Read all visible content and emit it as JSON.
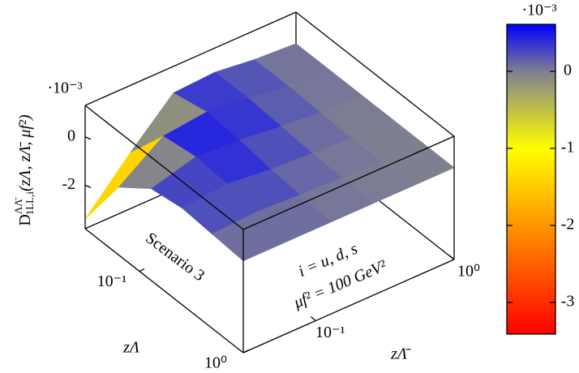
{
  "chart_data": {
    "type": "surface",
    "zlabel": {
      "base": "D",
      "sup": "ΛΛ̄",
      "sub": "1LL,i",
      "args": "(zΛ, zΛ̄, μf²)"
    },
    "xlabel": "zΛ",
    "ylabel": "zΛ̄",
    "x": [
      0.03,
      0.063,
      0.13,
      0.26,
      0.5,
      1
    ],
    "y": [
      0.03,
      0.063,
      0.13,
      0.26,
      0.5,
      1
    ],
    "z": [
      [
        -3.4,
        -1.5,
        0.2,
        0.3,
        0.1,
        0
      ],
      [
        -1.0,
        0.3,
        0.5,
        0.3,
        0.1,
        0
      ],
      [
        0.0,
        0.5,
        0.4,
        0.2,
        0.05,
        0
      ],
      [
        0.2,
        0.4,
        0.2,
        0.1,
        0.0,
        0
      ],
      [
        0.1,
        0.2,
        0.1,
        0.05,
        0,
        0
      ],
      [
        0,
        0,
        0,
        0,
        0,
        0
      ]
    ],
    "xlim": [
      0.03,
      1
    ],
    "ylim": [
      0.03,
      1
    ],
    "zlim": [
      -3.8,
      1.3
    ],
    "log_x": true,
    "log_y": true,
    "xticks": [
      {
        "value": 0.1,
        "label": "10⁻¹"
      },
      {
        "value": 1,
        "label": "10⁰"
      }
    ],
    "yticks": [
      {
        "value": 0.1,
        "label": "10⁻¹"
      },
      {
        "value": 1,
        "label": "10⁰"
      }
    ],
    "zticks": [
      -2,
      0
    ],
    "zticks_multiplier": "·10⁻³",
    "annotations": [
      "Scenario 3",
      "i = u, d, s",
      "μf² = 100 GeV²"
    ],
    "colorbar": {
      "clim": [
        -3.41,
        0.61
      ],
      "ticks": [
        -3,
        -2,
        -1,
        0
      ],
      "multiplier": "·10⁻³",
      "colormap": [
        {
          "value": -3.41,
          "color": "#ff0000"
        },
        {
          "value": -1,
          "color": "#ffff00"
        },
        {
          "value": 0,
          "color": "#7f7f92"
        },
        {
          "value": 0.61,
          "color": "#0000ff"
        }
      ]
    }
  }
}
